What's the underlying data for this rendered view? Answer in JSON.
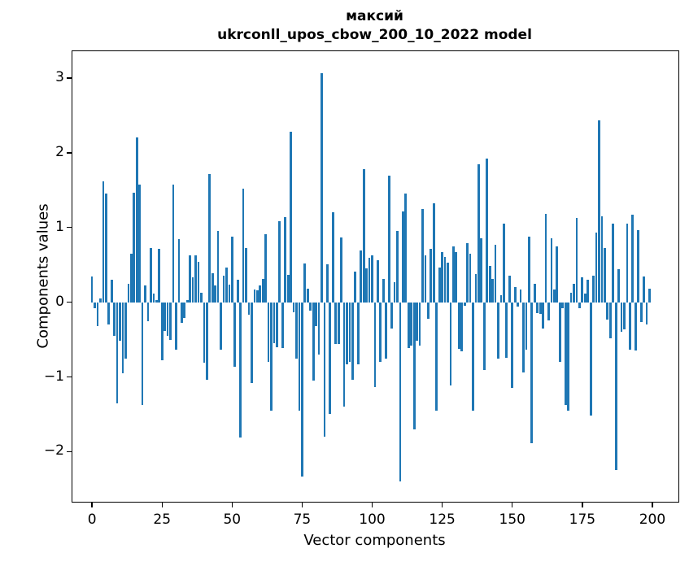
{
  "chart_data": {
    "type": "bar",
    "title": "максий",
    "subtitle": "ukrconll_upos_cbow_200_10_2022 model",
    "xlabel": "Vector components",
    "ylabel": "Components values",
    "bar_color": "#1f77b4",
    "axis_color": "#000000",
    "grid": false,
    "legend": "none",
    "xlim": [
      -7,
      209.3
    ],
    "ylim": [
      -2.67,
      3.36
    ],
    "bar_width": 0.8,
    "x_ticks": [
      0,
      25,
      50,
      75,
      100,
      125,
      150,
      175,
      200
    ],
    "x_tick_labels": [
      "0",
      "25",
      "50",
      "75",
      "100",
      "125",
      "150",
      "175",
      "200"
    ],
    "y_ticks": [
      3,
      2,
      1,
      0,
      -1,
      -2
    ],
    "y_tick_labels": [
      "3",
      "2",
      "1",
      "0",
      "−1",
      "−2"
    ],
    "x_description": "component index 0 to 199",
    "values": [
      0.35,
      -0.08,
      -0.32,
      0.05,
      1.62,
      1.45,
      -0.3,
      0.3,
      -0.45,
      -1.35,
      -0.52,
      -0.95,
      -0.75,
      0.25,
      0.65,
      1.47,
      2.21,
      1.58,
      -1.38,
      0.22,
      -0.25,
      0.73,
      0.12,
      0.03,
      0.71,
      -0.78,
      -0.38,
      -0.45,
      -0.5,
      1.57,
      -0.64,
      0.85,
      -0.28,
      -0.21,
      0.03,
      0.63,
      0.33,
      0.63,
      0.54,
      0.13,
      -0.81,
      -1.04,
      1.72,
      0.39,
      0.22,
      0.95,
      -0.64,
      0.36,
      0.46,
      0.24,
      0.88,
      -0.86,
      0.3,
      -1.81,
      1.52,
      0.73,
      -0.17,
      -1.08,
      0.17,
      0.16,
      0.23,
      0.31,
      0.91,
      -0.8,
      -1.45,
      -0.55,
      -0.6,
      1.08,
      -0.61,
      1.14,
      0.37,
      2.28,
      -0.13,
      -0.75,
      -1.45,
      -2.33,
      0.52,
      0.18,
      -0.11,
      -1.05,
      -0.32,
      -0.7,
      3.07,
      -1.8,
      0.51,
      -1.5,
      1.2,
      -0.56,
      -0.56,
      0.87,
      -1.4,
      -0.83,
      -0.8,
      -1.04,
      0.41,
      -0.83,
      0.69,
      1.78,
      0.45,
      0.59,
      0.63,
      -1.14,
      0.56,
      -0.8,
      0.31,
      -0.75,
      1.7,
      -0.35,
      0.27,
      0.95,
      -2.4,
      1.22,
      1.45,
      -0.61,
      -0.58,
      -1.7,
      -0.51,
      -0.58,
      1.25,
      0.63,
      -0.22,
      0.71,
      1.33,
      -1.45,
      0.46,
      0.67,
      0.61,
      0.53,
      -1.11,
      0.75,
      0.67,
      -0.62,
      -0.66,
      -0.05,
      0.79,
      0.65,
      -1.45,
      0.38,
      1.85,
      0.86,
      -0.91,
      1.92,
      0.49,
      0.31,
      0.77,
      -0.75,
      0.1,
      1.05,
      -0.74,
      0.36,
      -1.15,
      0.2,
      -0.06,
      0.17,
      -0.94,
      -0.63,
      0.88,
      -1.89,
      0.25,
      -0.14,
      -0.16,
      -0.35,
      1.18,
      -0.24,
      0.86,
      0.17,
      0.75,
      -0.8,
      -0.08,
      -1.38,
      -1.45,
      0.13,
      0.25,
      1.13,
      -0.08,
      0.33,
      0.12,
      0.3,
      -1.52,
      0.36,
      0.93,
      2.43,
      1.15,
      0.73,
      -0.23,
      -0.48,
      1.05,
      -2.25,
      0.44,
      -0.4,
      -0.36,
      1.05,
      -0.64,
      1.17,
      -0.65,
      0.97,
      -0.26,
      0.35,
      -0.3,
      0.18
    ]
  }
}
